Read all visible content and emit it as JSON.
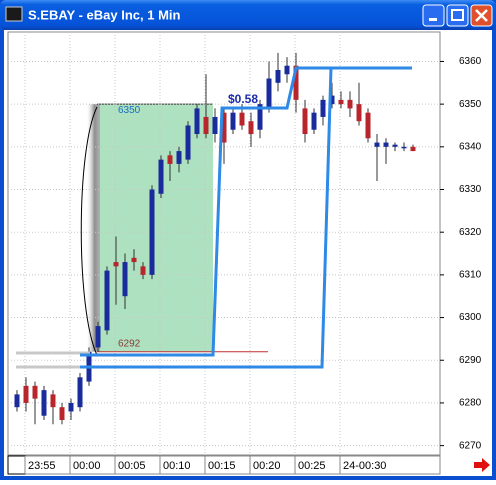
{
  "chart_data": {
    "type": "candlestick",
    "title": "S.EBAY - eBay Inc, 1 Min",
    "categories": [
      null,
      "23:55",
      null,
      null,
      null,
      null,
      "00:00",
      null,
      null,
      null,
      null,
      "00:05",
      null,
      null,
      null,
      null,
      "00:10",
      null,
      null,
      null,
      null,
      "00:15",
      null,
      null,
      null,
      null,
      "00:20",
      null,
      null,
      null,
      null,
      "00:25",
      null,
      null,
      null,
      null,
      "24-00:30",
      null,
      null,
      null,
      null,
      null,
      null,
      null,
      null
    ],
    "open": [
      6279,
      6284,
      6284,
      6277,
      6282,
      6279,
      6278,
      6279,
      6285,
      6293,
      6297,
      6313,
      6305,
      6314,
      6312,
      6310,
      6329,
      6338,
      6336,
      6337,
      6343,
      6347,
      6343,
      6348,
      6344,
      6348,
      6346,
      6344,
      6349,
      6355,
      6357,
      6359,
      6349,
      6344,
      6347,
      6350,
      6351,
      6351,
      6350,
      6348,
      6340,
      6340,
      6340,
      6340,
      6340
    ],
    "high": [
      6283,
      6286,
      6285,
      6284,
      6283,
      6280,
      6281,
      6287,
      6293,
      6299,
      6312,
      6319,
      6315,
      6316,
      6313,
      6331,
      6338,
      6339,
      6340,
      6346,
      6350,
      6357,
      6349,
      6349,
      6349,
      6350,
      6348,
      6351,
      6360,
      6362,
      6361,
      6362,
      6351,
      6349,
      6352,
      6355,
      6353,
      6353,
      6355,
      6349,
      6343,
      6342,
      6341,
      6341,
      6340.5
    ],
    "low": [
      6278,
      6278,
      6275,
      6276,
      6275,
      6275,
      6276,
      6278,
      6284,
      6292,
      6296,
      6303,
      6302,
      6311,
      6309,
      6309,
      6328,
      6332,
      6334,
      6336,
      6342,
      6342,
      6341,
      6336,
      6343,
      6344,
      6340,
      6342,
      6348,
      6353,
      6355,
      6348,
      6341,
      6343,
      6345,
      6349,
      6349,
      6347,
      6345,
      6341,
      6332,
      6336,
      6339,
      6339,
      6339
    ],
    "close": [
      6282,
      6280,
      6281,
      6283,
      6279,
      6276,
      6280,
      6286,
      6292,
      6298,
      6311,
      6312,
      6313,
      6313,
      6310,
      6330,
      6337,
      6336,
      6339,
      6345,
      6349,
      6343,
      6347,
      6341,
      6348,
      6345,
      6343,
      6350,
      6356,
      6358,
      6359,
      6351,
      6343,
      6348,
      6351,
      6352,
      6350,
      6349,
      6346,
      6342,
      6341,
      6341,
      6340.5,
      6340,
      6339
    ],
    "up_color": "#1a2c9c",
    "down_color": "#b8262c",
    "ylim": [
      6267.8,
      6366.9
    ],
    "yticks": [
      6270,
      6280,
      6290,
      6300,
      6310,
      6320,
      6330,
      6340,
      6350,
      6360
    ],
    "grid": true,
    "annotations": [
      {
        "label": "6350",
        "value": 6350
      },
      {
        "label": "6292",
        "value": 6292
      },
      {
        "label": "$0.58"
      }
    ]
  }
}
